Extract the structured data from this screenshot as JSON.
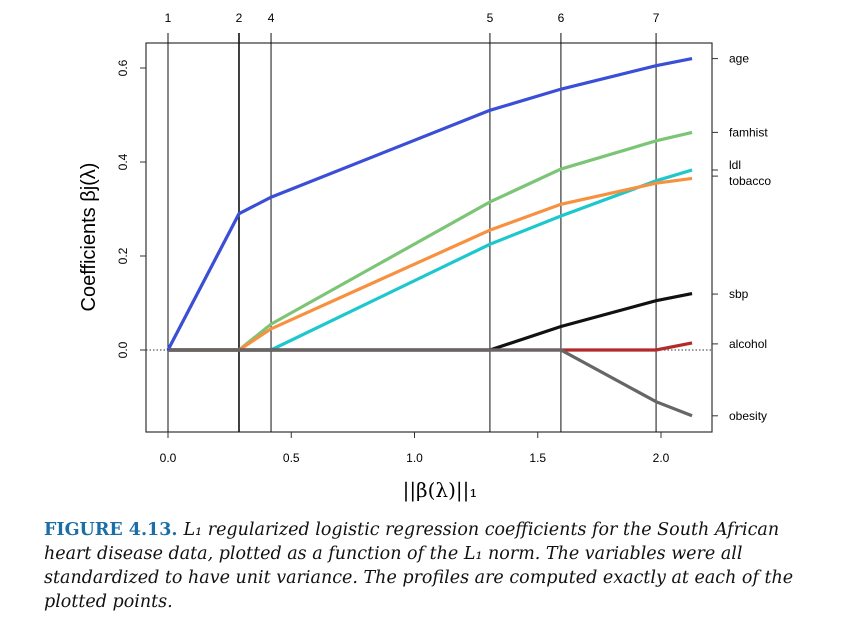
{
  "chart_data": {
    "type": "line",
    "title": "",
    "xlabel": "||β(λ)||₁",
    "ylabel": "Coefficients βj(λ)",
    "xlim": [
      -0.09,
      2.21
    ],
    "ylim": [
      -0.175,
      0.655
    ],
    "xticks": [
      "0.0",
      "0.5",
      "1.0",
      "1.5",
      "2.0"
    ],
    "yticks": [
      "0.0",
      "0.2",
      "0.4",
      "0.6"
    ],
    "top_axis": {
      "positions": [
        0,
        0.288,
        0.418,
        1.306,
        1.594,
        1.98
      ],
      "labels": [
        "1",
        "2",
        "4",
        "5",
        "6",
        "7"
      ]
    },
    "series": [
      {
        "name": "age",
        "color": "#3b4fd6",
        "x": [
          0,
          0.288,
          0.418,
          1.306,
          1.594,
          1.98,
          2.126
        ],
        "y": [
          0,
          0.29,
          0.325,
          0.51,
          0.555,
          0.605,
          0.62
        ]
      },
      {
        "name": "famhist",
        "color": "#7cc576",
        "x": [
          0,
          0.288,
          0.418,
          1.306,
          1.594,
          1.98,
          2.126
        ],
        "y": [
          0,
          0,
          0.055,
          0.315,
          0.385,
          0.445,
          0.463
        ]
      },
      {
        "name": "ldl",
        "color": "#1cc8cc",
        "x": [
          0,
          0.418,
          1.306,
          1.594,
          1.98,
          2.126
        ],
        "y": [
          0,
          0,
          0.225,
          0.285,
          0.36,
          0.383
        ]
      },
      {
        "name": "tobacco",
        "color": "#f79140",
        "x": [
          0,
          0.288,
          0.418,
          1.306,
          1.594,
          1.98,
          2.126
        ],
        "y": [
          0,
          0,
          0.045,
          0.255,
          0.31,
          0.355,
          0.365
        ]
      },
      {
        "name": "sbp",
        "color": "#111111",
        "x": [
          0,
          1.306,
          1.594,
          1.98,
          2.126
        ],
        "y": [
          0,
          0,
          0.05,
          0.105,
          0.12
        ]
      },
      {
        "name": "alcohol",
        "color": "#b22a2a",
        "x": [
          0,
          1.98,
          2.126
        ],
        "y": [
          0,
          0,
          0.015
        ]
      },
      {
        "name": "obesity",
        "color": "#666666",
        "x": [
          0,
          1.594,
          1.98,
          2.126
        ],
        "y": [
          0,
          0,
          -0.11,
          -0.14
        ]
      }
    ],
    "right_labels": [
      {
        "name": "age",
        "y": 0.62
      },
      {
        "name": "famhist",
        "y": 0.463
      },
      {
        "name": "ldl",
        "y": 0.383
      },
      {
        "name": "tobacco",
        "y": 0.37
      },
      {
        "name": "sbp",
        "y": 0.119
      },
      {
        "name": "alcohol",
        "y": 0.013
      },
      {
        "name": "obesity",
        "y": -0.14
      }
    ]
  },
  "caption": {
    "label": "FIGURE 4.13.",
    "text": "L₁ regularized logistic regression coefficients for the South African heart disease data, plotted as a function of the L₁ norm. The variables were all standardized to have unit variance. The profiles are computed exactly at each of the plotted points."
  }
}
